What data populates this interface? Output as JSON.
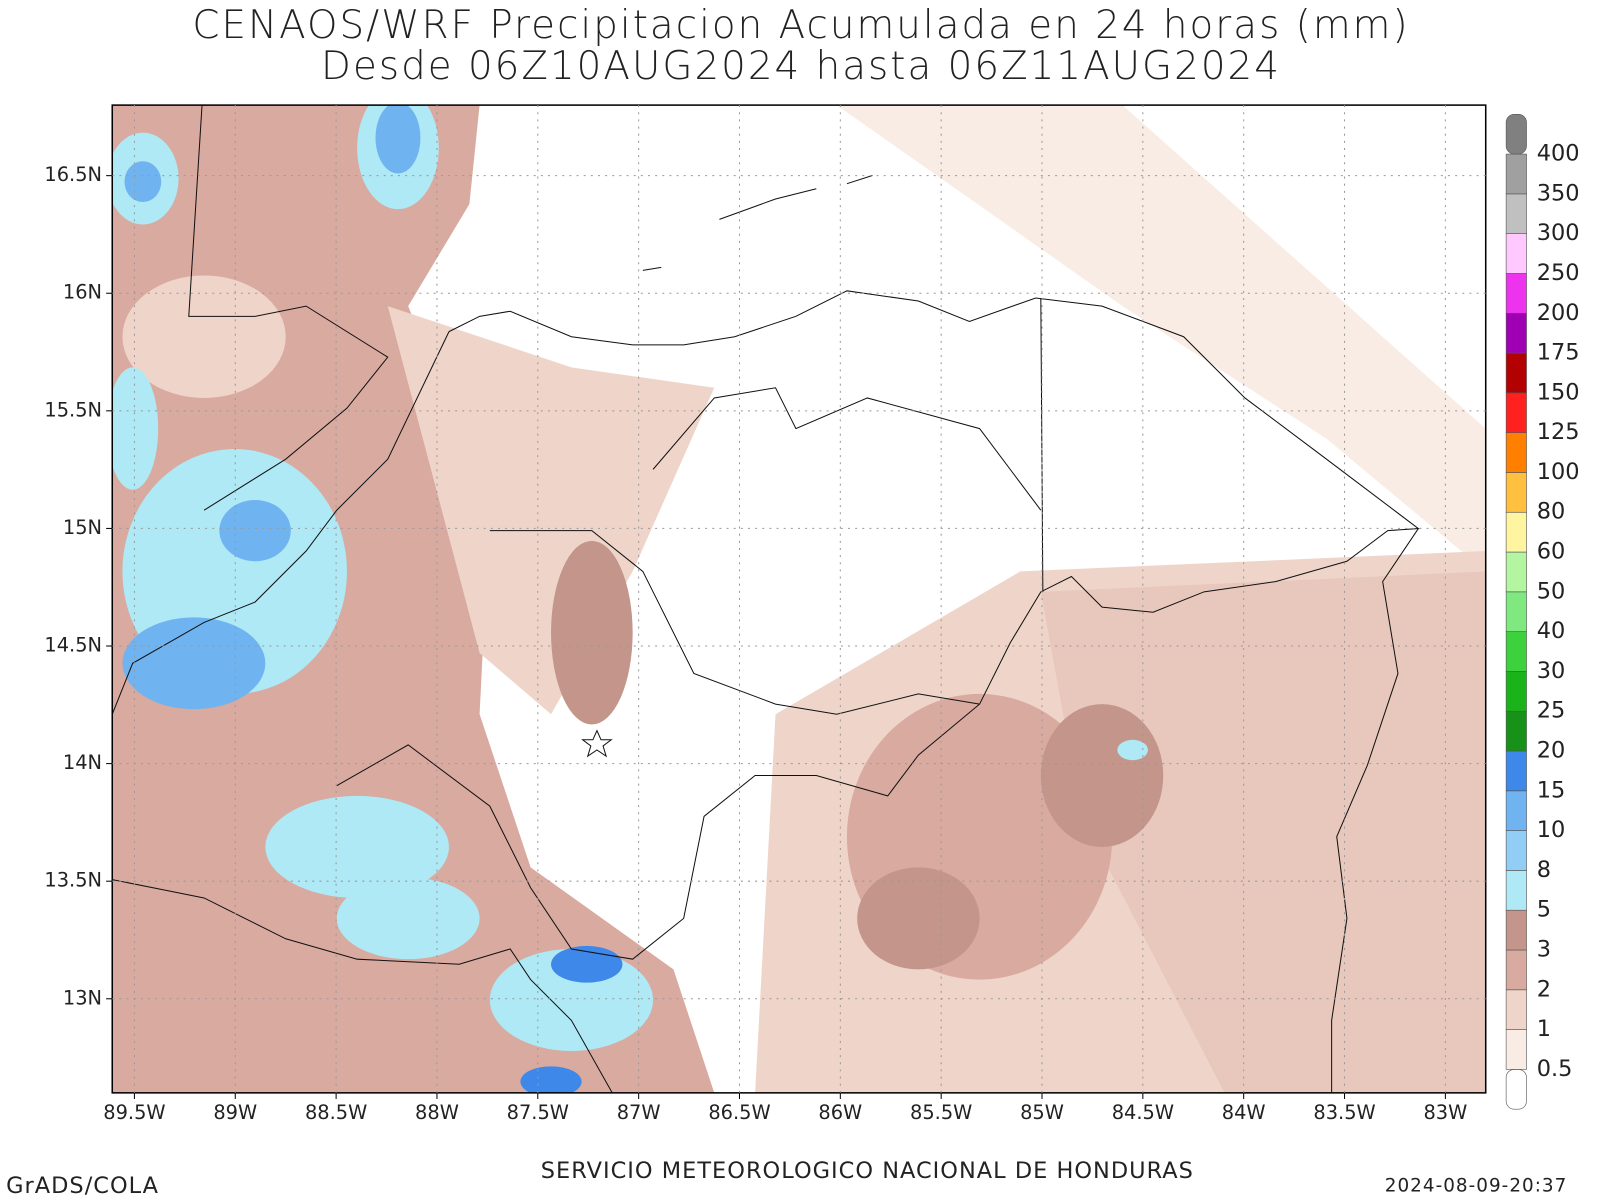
{
  "title": [
    "CENAOS/WRF Precipitacion Acumulada en 24 horas (mm)",
    "Desde 06Z10AUG2024 hasta 06Z11AUG2024"
  ],
  "map": {
    "xlim": [
      -89.61,
      -82.8
    ],
    "ylim": [
      12.6,
      16.8
    ],
    "xticks": [
      {
        "value": -89.5,
        "label": "89.5W"
      },
      {
        "value": -89,
        "label": "89W"
      },
      {
        "value": -88.5,
        "label": "88.5W"
      },
      {
        "value": -88,
        "label": "88W"
      },
      {
        "value": -87.5,
        "label": "87.5W"
      },
      {
        "value": -87,
        "label": "87W"
      },
      {
        "value": -86.5,
        "label": "86.5W"
      },
      {
        "value": -86,
        "label": "86W"
      },
      {
        "value": -85.5,
        "label": "85.5W"
      },
      {
        "value": -85,
        "label": "85W"
      },
      {
        "value": -84.5,
        "label": "84.5W"
      },
      {
        "value": -84,
        "label": "84W"
      },
      {
        "value": -83.5,
        "label": "83.5W"
      },
      {
        "value": -83,
        "label": "83W"
      }
    ],
    "yticks": [
      {
        "value": 13,
        "label": "13N"
      },
      {
        "value": 13.5,
        "label": "13.5N"
      },
      {
        "value": 14,
        "label": "14N"
      },
      {
        "value": 14.5,
        "label": "14.5N"
      },
      {
        "value": 15,
        "label": "15N"
      },
      {
        "value": 15.5,
        "label": "15.5N"
      },
      {
        "value": 16,
        "label": "16N"
      },
      {
        "value": 16.5,
        "label": "16.5N"
      }
    ],
    "grid": true
  },
  "colorbar": {
    "levels": [
      0.5,
      1,
      2,
      3,
      5,
      8,
      10,
      15,
      20,
      25,
      30,
      40,
      50,
      60,
      80,
      100,
      125,
      150,
      175,
      200,
      250,
      300,
      350,
      400
    ],
    "colors": [
      "#ffffff",
      "#f9ece4",
      "#efd5c9",
      "#d9aaa0",
      "#c4958a",
      "#aee9f5",
      "#91cdf5",
      "#6fb3f0",
      "#3d88e8",
      "#179117",
      "#1ab31a",
      "#3dd13d",
      "#7fe87f",
      "#b3f5a0",
      "#fff5a0",
      "#ffc040",
      "#ff7f00",
      "#ff2020",
      "#b30000",
      "#a000b3",
      "#ee33ee",
      "#ffc8ff",
      "#c0c0c0",
      "#a0a0a0",
      "#808080"
    ]
  },
  "footer": {
    "left": "GrADS/COLA",
    "center": "SERVICIO METEOROLOGICO NACIONAL DE HONDURAS",
    "right": "2024-08-09-20:37"
  }
}
